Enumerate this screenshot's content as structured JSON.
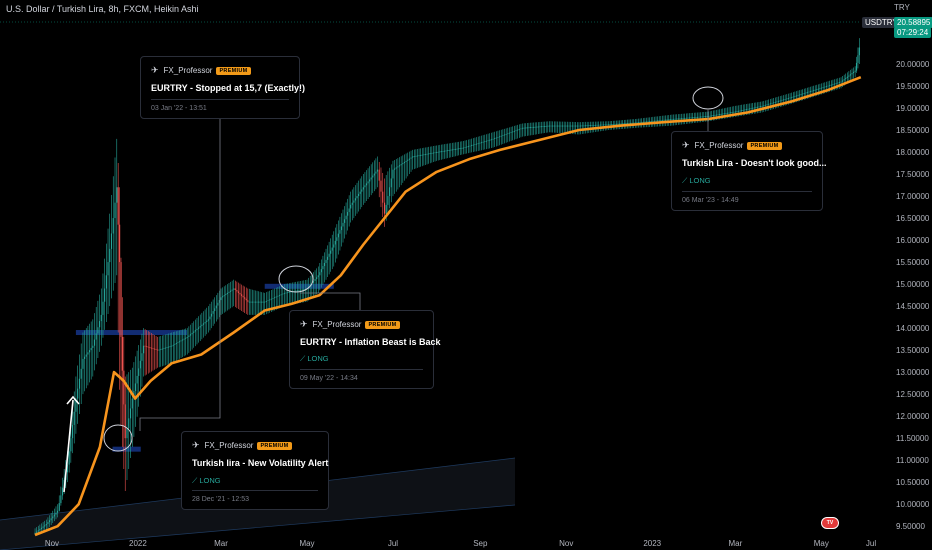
{
  "header": {
    "title": "U.S. Dollar / Turkish Lira, 8h, FXCM, Heikin Ashi",
    "currency": "TRY"
  },
  "price_tags": {
    "symbol": "USDTRY",
    "last_price": "20.58895",
    "countdown": "07:29:24"
  },
  "colors": {
    "up": "#26a69a",
    "down": "#ef5350",
    "ma": "#f7941d",
    "zone": "#2962ff",
    "badge": "#f29a18"
  },
  "ideas": [
    {
      "author": "FX_Professor",
      "badge": "PREMIUM",
      "title": "EURTRY - Stopped at 15,7 (Exactly!)",
      "direction": "",
      "timestamp": "03 Jan '22 - 13:51"
    },
    {
      "author": "FX_Professor",
      "badge": "PREMIUM",
      "title": "Turkish Lira - Doesn't look good...",
      "direction": "LONG",
      "timestamp": "06 Mar '23 - 14:49"
    },
    {
      "author": "FX_Professor",
      "badge": "PREMIUM",
      "title": "EURTRY - Inflation Beast is Back",
      "direction": "LONG",
      "timestamp": "09 May '22 - 14:34"
    },
    {
      "author": "FX_Professor",
      "badge": "PREMIUM",
      "title": "Turkish lira - New Volatility Alert",
      "direction": "LONG",
      "timestamp": "28 Dec '21 - 12:53"
    }
  ],
  "chart_data": {
    "type": "line",
    "title": "U.S. Dollar / Turkish Lira, 8h, FXCM, Heikin Ashi",
    "ylim": [
      9.3,
      21.0
    ],
    "y_ticks": [
      "20.00000",
      "19.50000",
      "19.00000",
      "18.50000",
      "18.00000",
      "17.50000",
      "17.00000",
      "16.50000",
      "16.00000",
      "15.50000",
      "15.00000",
      "14.50000",
      "14.00000",
      "13.50000",
      "13.00000",
      "12.50000",
      "12.00000",
      "11.50000",
      "11.00000",
      "10.50000",
      "10.00000",
      "9.50000"
    ],
    "x_ticks": [
      "Nov",
      "2022",
      "Mar",
      "May",
      "Jul",
      "Sep",
      "Nov",
      "2023",
      "Mar",
      "May",
      "Jul"
    ],
    "grid": false,
    "series": [
      {
        "type": "candles",
        "x": [
          "2021-10-20",
          "2021-10-28",
          "2021-11-05",
          "2021-11-12",
          "2021-11-18",
          "2021-11-23",
          "2021-11-30",
          "2021-12-06",
          "2021-12-12",
          "2021-12-17",
          "2021-12-19",
          "2021-12-20",
          "2021-12-23",
          "2021-12-28",
          "2022-01-05",
          "2022-01-15",
          "2022-01-25",
          "2022-02-05",
          "2022-02-20",
          "2022-03-01",
          "2022-03-10",
          "2022-03-20",
          "2022-04-01",
          "2022-04-15",
          "2022-05-01",
          "2022-05-09",
          "2022-05-20",
          "2022-06-01",
          "2022-06-10",
          "2022-06-20",
          "2022-06-25",
          "2022-07-01",
          "2022-07-15",
          "2022-08-01",
          "2022-08-20",
          "2022-09-10",
          "2022-10-01",
          "2022-10-20",
          "2022-11-10",
          "2022-12-01",
          "2022-12-20",
          "2023-01-15",
          "2023-02-10",
          "2023-03-01",
          "2023-03-20",
          "2023-04-10",
          "2023-04-30",
          "2023-05-15",
          "2023-05-25",
          "2023-05-29"
        ],
        "close": [
          9.35,
          9.55,
          9.85,
          10.9,
          12.4,
          13.3,
          13.6,
          14.3,
          15.8,
          17.2,
          15.5,
          13.8,
          11.5,
          12.4,
          13.6,
          13.5,
          13.6,
          13.8,
          14.2,
          14.7,
          14.9,
          14.6,
          14.6,
          14.8,
          14.9,
          15.2,
          15.9,
          16.8,
          17.2,
          17.6,
          16.6,
          17.6,
          17.9,
          18.0,
          18.1,
          18.3,
          18.55,
          18.6,
          18.6,
          18.63,
          18.67,
          18.75,
          18.82,
          18.92,
          19.05,
          19.25,
          19.45,
          19.6,
          19.85,
          20.55
        ],
        "high": [
          9.45,
          9.65,
          10.0,
          11.2,
          12.9,
          13.9,
          14.2,
          14.9,
          16.6,
          18.3,
          17.2,
          15.6,
          12.9,
          13.1,
          14.0,
          13.8,
          13.9,
          14.0,
          14.5,
          14.9,
          15.1,
          14.9,
          14.8,
          15.0,
          15.1,
          15.4,
          16.2,
          17.1,
          17.5,
          17.9,
          17.4,
          17.8,
          18.05,
          18.15,
          18.25,
          18.45,
          18.65,
          18.7,
          18.68,
          18.7,
          18.75,
          18.85,
          18.92,
          19.05,
          19.15,
          19.35,
          19.55,
          19.7,
          19.95,
          20.8
        ],
        "low": [
          9.3,
          9.4,
          9.7,
          10.5,
          11.6,
          12.5,
          12.9,
          13.6,
          14.5,
          15.2,
          12.6,
          11.8,
          10.3,
          11.3,
          12.9,
          13.1,
          13.2,
          13.4,
          13.9,
          14.3,
          14.5,
          14.3,
          14.3,
          14.5,
          14.6,
          14.8,
          15.4,
          16.4,
          16.8,
          17.2,
          16.3,
          17.0,
          17.6,
          17.8,
          17.95,
          18.1,
          18.35,
          18.45,
          18.4,
          18.5,
          18.55,
          18.6,
          18.7,
          18.8,
          18.9,
          19.1,
          19.3,
          19.45,
          19.7,
          20.1
        ]
      },
      {
        "type": "line",
        "x": [
          "2021-10-20",
          "2021-11-05",
          "2021-11-20",
          "2021-12-05",
          "2021-12-15",
          "2021-12-22",
          "2021-12-30",
          "2022-01-10",
          "2022-01-25",
          "2022-02-15",
          "2022-03-10",
          "2022-04-01",
          "2022-04-20",
          "2022-05-10",
          "2022-05-25",
          "2022-06-10",
          "2022-06-25",
          "2022-07-10",
          "2022-08-01",
          "2022-08-25",
          "2022-09-15",
          "2022-10-10",
          "2022-11-10",
          "2022-12-10",
          "2023-01-10",
          "2023-02-10",
          "2023-03-10",
          "2023-04-10",
          "2023-05-05",
          "2023-05-29"
        ],
        "y": [
          9.3,
          9.5,
          10.0,
          11.3,
          13.0,
          12.8,
          12.4,
          12.8,
          13.2,
          13.4,
          13.9,
          14.4,
          14.55,
          14.75,
          15.2,
          15.9,
          16.5,
          17.1,
          17.55,
          17.85,
          18.05,
          18.25,
          18.5,
          18.6,
          18.68,
          18.75,
          18.9,
          19.15,
          19.4,
          19.7
        ]
      }
    ],
    "zones": [
      {
        "x": [
          "2021-11-18",
          "2022-02-05"
        ],
        "y": 13.9
      },
      {
        "x": [
          "2022-04-01",
          "2022-05-20"
        ],
        "y": 14.95
      },
      {
        "x": [
          "2021-12-14",
          "2022-01-03"
        ],
        "y": 11.25
      }
    ]
  }
}
